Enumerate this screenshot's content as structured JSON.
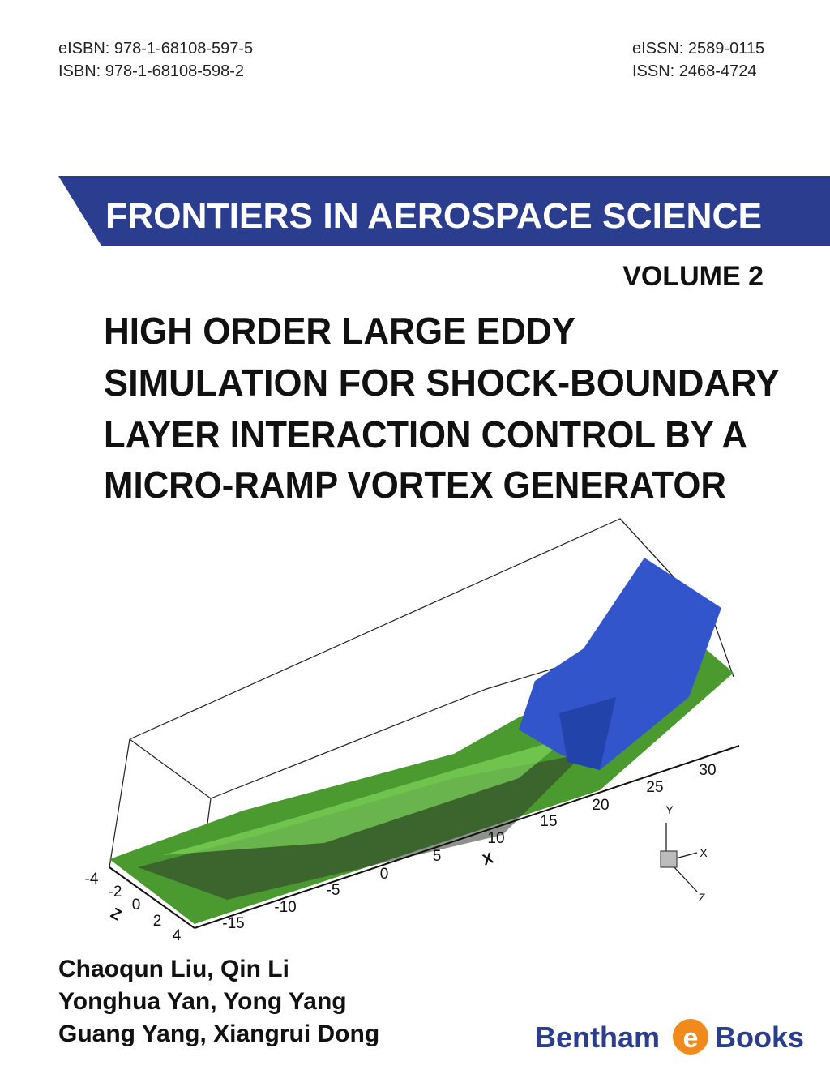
{
  "identifiers": {
    "left": [
      "eISBN: 978-1-68108-597-5",
      "ISBN: 978-1-68108-598-2"
    ],
    "right": [
      "eISSN: 2589-0115",
      "ISSN: 2468-4724"
    ]
  },
  "series_banner": "FRONTIERS IN AEROSPACE SCIENCE",
  "volume": "VOLUME 2",
  "title_lines": [
    "HIGH ORDER LARGE EDDY",
    "SIMULATION FOR SHOCK-BOUNDARY",
    "LAYER INTERACTION CONTROL BY A",
    "MICRO-RAMP VORTEX GENERATOR"
  ],
  "figure": {
    "x_ticks": [
      "-15",
      "-10",
      "-5",
      "0",
      "5",
      "10",
      "15",
      "20",
      "25",
      "30"
    ],
    "x_label": "X",
    "z_ticks": [
      "-4",
      "-2",
      "0",
      "2",
      "4"
    ],
    "z_label": "Z",
    "triad": [
      "Y",
      "X",
      "Z"
    ]
  },
  "authors": [
    "Chaoqun Liu, Qin Li",
    "Yonghua Yan, Yong Yang",
    "Guang Yang, Xiangrui Dong"
  ],
  "publisher": {
    "name_left": "Bentham",
    "logo_letter": "e",
    "name_right": "Books"
  }
}
